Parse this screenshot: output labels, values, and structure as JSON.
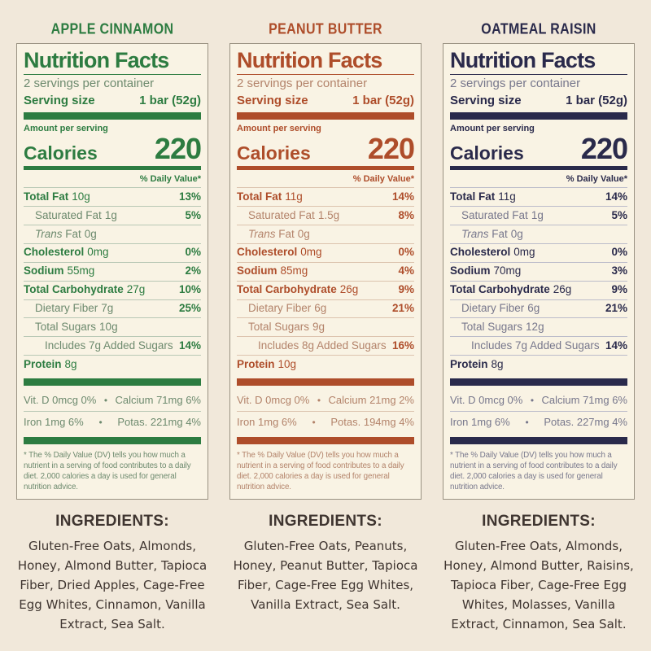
{
  "palette": {
    "page_bg": "#f1e8da",
    "panel_bg": "#f9f3e4",
    "panel_border": "#9a9282",
    "ingredients_text": "#3f3530"
  },
  "labels": [
    {
      "flavor": "APPLE CINNAMON",
      "theme": {
        "primary": "#2d7c41",
        "muted": "#6d8a6e",
        "hairline": "#b9c8b5"
      },
      "title": "Nutrition Facts",
      "servings_per_container": "2 servings per container",
      "serving_size_label": "Serving size",
      "serving_size_value": "1 bar (52g)",
      "amount_per_serving": "Amount per serving",
      "calories_label": "Calories",
      "calories_value": "220",
      "daily_value_header": "% Daily Value*",
      "rows": [
        {
          "name": "Total Fat",
          "amount": "10g",
          "dv": "13%",
          "bold": true,
          "indent": 0
        },
        {
          "name": "Saturated Fat",
          "amount": "1g",
          "dv": "5%",
          "bold": false,
          "indent": 1
        },
        {
          "name": "Trans Fat",
          "amount": "0g",
          "dv": "",
          "bold": false,
          "indent": 1,
          "italic": true
        },
        {
          "name": "Cholesterol",
          "amount": "0mg",
          "dv": "0%",
          "bold": true,
          "indent": 0
        },
        {
          "name": "Sodium",
          "amount": "55mg",
          "dv": "2%",
          "bold": true,
          "indent": 0
        },
        {
          "name": "Total Carbohydrate",
          "amount": "27g",
          "dv": "10%",
          "bold": true,
          "indent": 0
        },
        {
          "name": "Dietary Fiber",
          "amount": "7g",
          "dv": "25%",
          "bold": false,
          "indent": 1
        },
        {
          "name": "Total Sugars",
          "amount": "10g",
          "dv": "",
          "bold": false,
          "indent": 1
        },
        {
          "name": "Includes 7g Added Sugars",
          "amount": "",
          "dv": "14%",
          "bold": false,
          "indent": 2
        },
        {
          "name": "Protein",
          "amount": "8g",
          "dv": "",
          "bold": true,
          "indent": 0
        }
      ],
      "micros": [
        {
          "left": "Vit. D 0mcg 0%",
          "bullet": "•",
          "right": "Calcium 71mg 6%"
        },
        {
          "left": "Iron 1mg 6%",
          "bullet": "•",
          "right": "Potas. 221mg 4%"
        }
      ],
      "footnote": "* The % Daily Value (DV) tells you how much a nutrient in a serving of food contributes to a daily diet. 2,000 calories a day is used for general nutrition advice.",
      "ingredients_title": "INGREDIENTS:",
      "ingredients": "Gluten-Free Oats, Almonds, Honey, Almond Butter, Tapioca Fiber, Dried Apples, Cage-Free Egg Whites, Cinnamon, Vanilla Extract, Sea Salt."
    },
    {
      "flavor": "PEANUT BUTTER",
      "theme": {
        "primary": "#ae4d2a",
        "muted": "#b3836a",
        "hairline": "#dcc3ae"
      },
      "title": "Nutrition Facts",
      "servings_per_container": "2 servings per container",
      "serving_size_label": "Serving size",
      "serving_size_value": "1 bar (52g)",
      "amount_per_serving": "Amount per serving",
      "calories_label": "Calories",
      "calories_value": "220",
      "daily_value_header": "% Daily Value*",
      "rows": [
        {
          "name": "Total Fat",
          "amount": "11g",
          "dv": "14%",
          "bold": true,
          "indent": 0
        },
        {
          "name": "Saturated Fat",
          "amount": "1.5g",
          "dv": "8%",
          "bold": false,
          "indent": 1
        },
        {
          "name": "Trans Fat",
          "amount": "0g",
          "dv": "",
          "bold": false,
          "indent": 1,
          "italic": true
        },
        {
          "name": "Cholesterol",
          "amount": "0mg",
          "dv": "0%",
          "bold": true,
          "indent": 0
        },
        {
          "name": "Sodium",
          "amount": "85mg",
          "dv": "4%",
          "bold": true,
          "indent": 0
        },
        {
          "name": "Total Carbohydrate",
          "amount": "26g",
          "dv": "9%",
          "bold": true,
          "indent": 0
        },
        {
          "name": "Dietary Fiber",
          "amount": "6g",
          "dv": "21%",
          "bold": false,
          "indent": 1
        },
        {
          "name": "Total Sugars",
          "amount": "9g",
          "dv": "",
          "bold": false,
          "indent": 1
        },
        {
          "name": "Includes 8g Added Sugars",
          "amount": "",
          "dv": "16%",
          "bold": false,
          "indent": 2
        },
        {
          "name": "Protein",
          "amount": "10g",
          "dv": "",
          "bold": true,
          "indent": 0
        }
      ],
      "micros": [
        {
          "left": "Vit. D 0mcg 0%",
          "bullet": "•",
          "right": "Calcium 21mg 2%"
        },
        {
          "left": "Iron 1mg 6%",
          "bullet": "•",
          "right": "Potas. 194mg 4%"
        }
      ],
      "footnote": "* The % Daily Value (DV) tells you how much a nutrient in a serving of food contributes to a daily diet. 2,000 calories a day is used for general nutrition advice.",
      "ingredients_title": "INGREDIENTS:",
      "ingredients": "Gluten-Free Oats, Peanuts, Honey, Peanut Butter, Tapioca Fiber, Cage-Free Egg Whites, Vanilla Extract, Sea Salt."
    },
    {
      "flavor": "OATMEAL RAISIN",
      "theme": {
        "primary": "#2a2a4b",
        "muted": "#77778c",
        "hairline": "#bcbcca"
      },
      "title": "Nutrition Facts",
      "servings_per_container": "2 servings per container",
      "serving_size_label": "Serving size",
      "serving_size_value": "1 bar (52g)",
      "amount_per_serving": "Amount per serving",
      "calories_label": "Calories",
      "calories_value": "220",
      "daily_value_header": "% Daily Value*",
      "rows": [
        {
          "name": "Total Fat",
          "amount": "11g",
          "dv": "14%",
          "bold": true,
          "indent": 0
        },
        {
          "name": "Saturated Fat",
          "amount": "1g",
          "dv": "5%",
          "bold": false,
          "indent": 1
        },
        {
          "name": "Trans Fat",
          "amount": "0g",
          "dv": "",
          "bold": false,
          "indent": 1,
          "italic": true
        },
        {
          "name": "Cholesterol",
          "amount": "0mg",
          "dv": "0%",
          "bold": true,
          "indent": 0
        },
        {
          "name": "Sodium",
          "amount": "70mg",
          "dv": "3%",
          "bold": true,
          "indent": 0
        },
        {
          "name": "Total Carbohydrate",
          "amount": "26g",
          "dv": "9%",
          "bold": true,
          "indent": 0
        },
        {
          "name": "Dietary Fiber",
          "amount": "6g",
          "dv": "21%",
          "bold": false,
          "indent": 1
        },
        {
          "name": "Total Sugars",
          "amount": "12g",
          "dv": "",
          "bold": false,
          "indent": 1
        },
        {
          "name": "Includes 7g Added Sugars",
          "amount": "",
          "dv": "14%",
          "bold": false,
          "indent": 2
        },
        {
          "name": "Protein",
          "amount": "8g",
          "dv": "",
          "bold": true,
          "indent": 0
        }
      ],
      "micros": [
        {
          "left": "Vit. D 0mcg 0%",
          "bullet": "•",
          "right": "Calcium 71mg 6%"
        },
        {
          "left": "Iron 1mg 6%",
          "bullet": "•",
          "right": "Potas. 227mg 4%"
        }
      ],
      "footnote": "* The % Daily Value (DV) tells you how much a nutrient in a serving of food contributes to a daily diet. 2,000 calories a day is used for general nutrition advice.",
      "ingredients_title": "INGREDIENTS:",
      "ingredients": "Gluten-Free Oats, Almonds, Honey, Almond Butter, Raisins, Tapioca Fiber, Cage-Free Egg Whites, Molasses, Vanilla Extract, Cinnamon, Sea Salt."
    }
  ]
}
